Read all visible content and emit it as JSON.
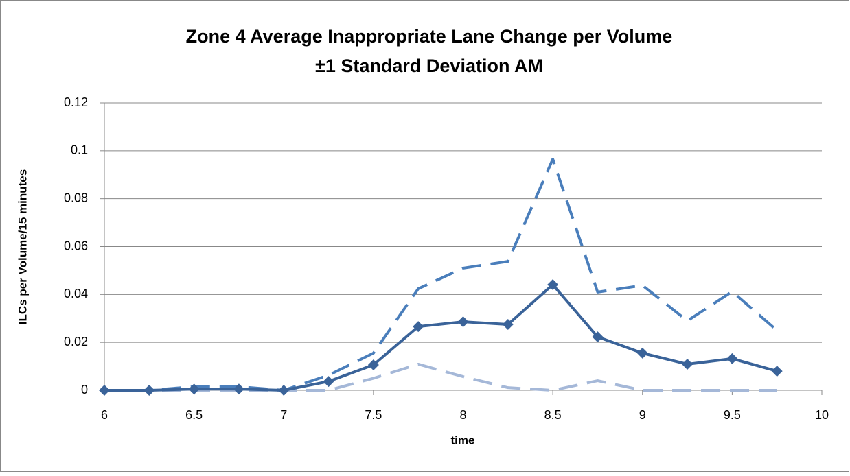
{
  "chart_data": {
    "type": "line",
    "title": [
      "Zone 4 Average Inappropriate Lane Change per Volume",
      "±1 Standard Deviation AM"
    ],
    "x_label": "time",
    "y_label": "ILCs per Volume/15 minutes",
    "x": [
      6,
      6.25,
      6.5,
      6.75,
      7,
      7.25,
      7.5,
      7.75,
      8,
      8.25,
      8.5,
      8.75,
      9,
      9.25,
      9.5,
      9.75
    ],
    "series": [
      {
        "color": "#4a7ebb",
        "dash": "long",
        "marker": "none",
        "values": [
          0,
          0,
          0.0015,
          0.0015,
          0,
          0.0063,
          0.0155,
          0.0424,
          0.051,
          0.0538,
          0.0965,
          0.041,
          0.0438,
          0.029,
          0.0412,
          0.025
        ]
      },
      {
        "color": "#a5b8d8",
        "dash": "long",
        "marker": "none",
        "values": [
          0,
          0,
          0,
          0,
          0,
          0,
          0.005,
          0.0109,
          0.0057,
          0.0011,
          0,
          0.004,
          0,
          0,
          0,
          0
        ]
      },
      {
        "color": "#3a6399",
        "dash": "solid",
        "marker": "diamond",
        "values": [
          0,
          0,
          0.0005,
          0.0005,
          0,
          0.0037,
          0.0106,
          0.0266,
          0.0286,
          0.0275,
          0.0441,
          0.0223,
          0.0155,
          0.0109,
          0.0132,
          0.008
        ]
      }
    ],
    "xlim": [
      6,
      10
    ],
    "xticks": [
      6,
      6.5,
      7,
      7.5,
      8,
      8.5,
      9,
      9.5,
      10
    ],
    "ylim": [
      0,
      0.12
    ],
    "yticks": [
      0,
      0.02,
      0.04,
      0.06,
      0.08,
      0.1,
      0.12
    ],
    "grid": true
  }
}
